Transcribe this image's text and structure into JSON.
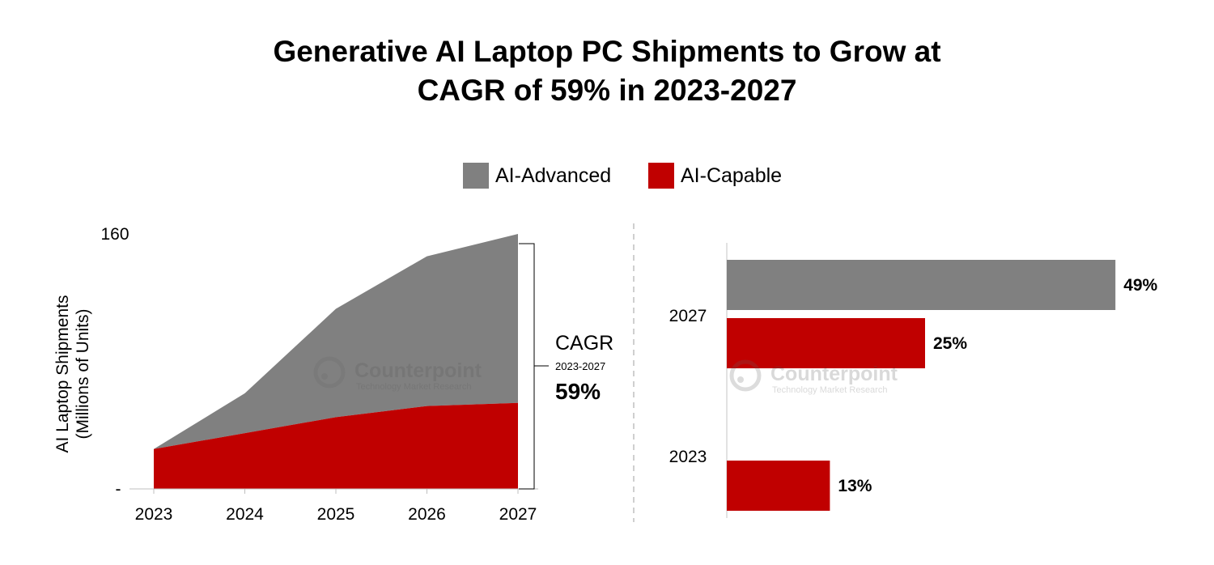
{
  "title": {
    "line1": "Generative AI Laptop PC Shipments to Grow at",
    "line2": "CAGR of 59% in 2023-2027"
  },
  "legend": [
    {
      "label": "AI-Advanced",
      "color": "#808080"
    },
    {
      "label": "AI-Capable",
      "color": "#c00000"
    }
  ],
  "watermark": {
    "brand": "Counterpoint",
    "tagline": "Technology Market Research"
  },
  "cagr": {
    "label": "CAGR",
    "period": "2023-2027",
    "value": "59%"
  },
  "chart_data": [
    {
      "type": "area",
      "stacked": true,
      "ylabel_line1": "AI Laptop Shipments",
      "ylabel_line2": "(Millions of Units)",
      "y_ticks": [
        "160",
        "-"
      ],
      "ylim": [
        0,
        160
      ],
      "x": [
        "2023",
        "2024",
        "2025",
        "2026",
        "2027"
      ],
      "series": [
        {
          "name": "AI-Capable",
          "color": "#c00000",
          "values": [
            25,
            35,
            45,
            52,
            54
          ]
        },
        {
          "name": "AI-Advanced",
          "color": "#808080",
          "values": [
            0,
            25,
            68,
            94,
            106
          ]
        }
      ]
    },
    {
      "type": "bar",
      "orientation": "horizontal",
      "categories": [
        "2027",
        "2023"
      ],
      "series": [
        {
          "name": "AI-Advanced",
          "color": "#808080",
          "values": [
            49,
            null
          ],
          "labels": [
            "49%",
            ""
          ]
        },
        {
          "name": "AI-Capable",
          "color": "#c00000",
          "values": [
            25,
            13
          ],
          "labels": [
            "25%",
            "13%"
          ]
        }
      ],
      "xlim": [
        0,
        50
      ]
    }
  ]
}
